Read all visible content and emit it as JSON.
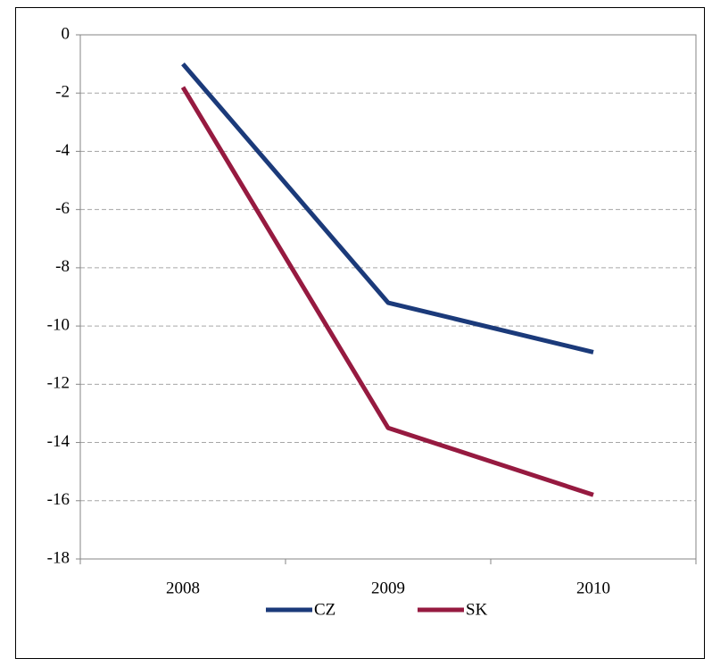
{
  "chart_data": {
    "type": "line",
    "categories": [
      "2008",
      "2009",
      "2010"
    ],
    "series": [
      {
        "name": "CZ",
        "color": "#1b3a7a",
        "values": [
          -1,
          -9.2,
          -10.9
        ]
      },
      {
        "name": "SK",
        "color": "#961a40",
        "values": [
          -1.8,
          -13.5,
          -15.8
        ]
      }
    ],
    "ylim": [
      -18,
      0
    ],
    "yticks": [
      0,
      -2,
      -4,
      -6,
      -8,
      -10,
      -12,
      -14,
      -16,
      -18
    ],
    "grid": true,
    "legend": "bottom"
  }
}
